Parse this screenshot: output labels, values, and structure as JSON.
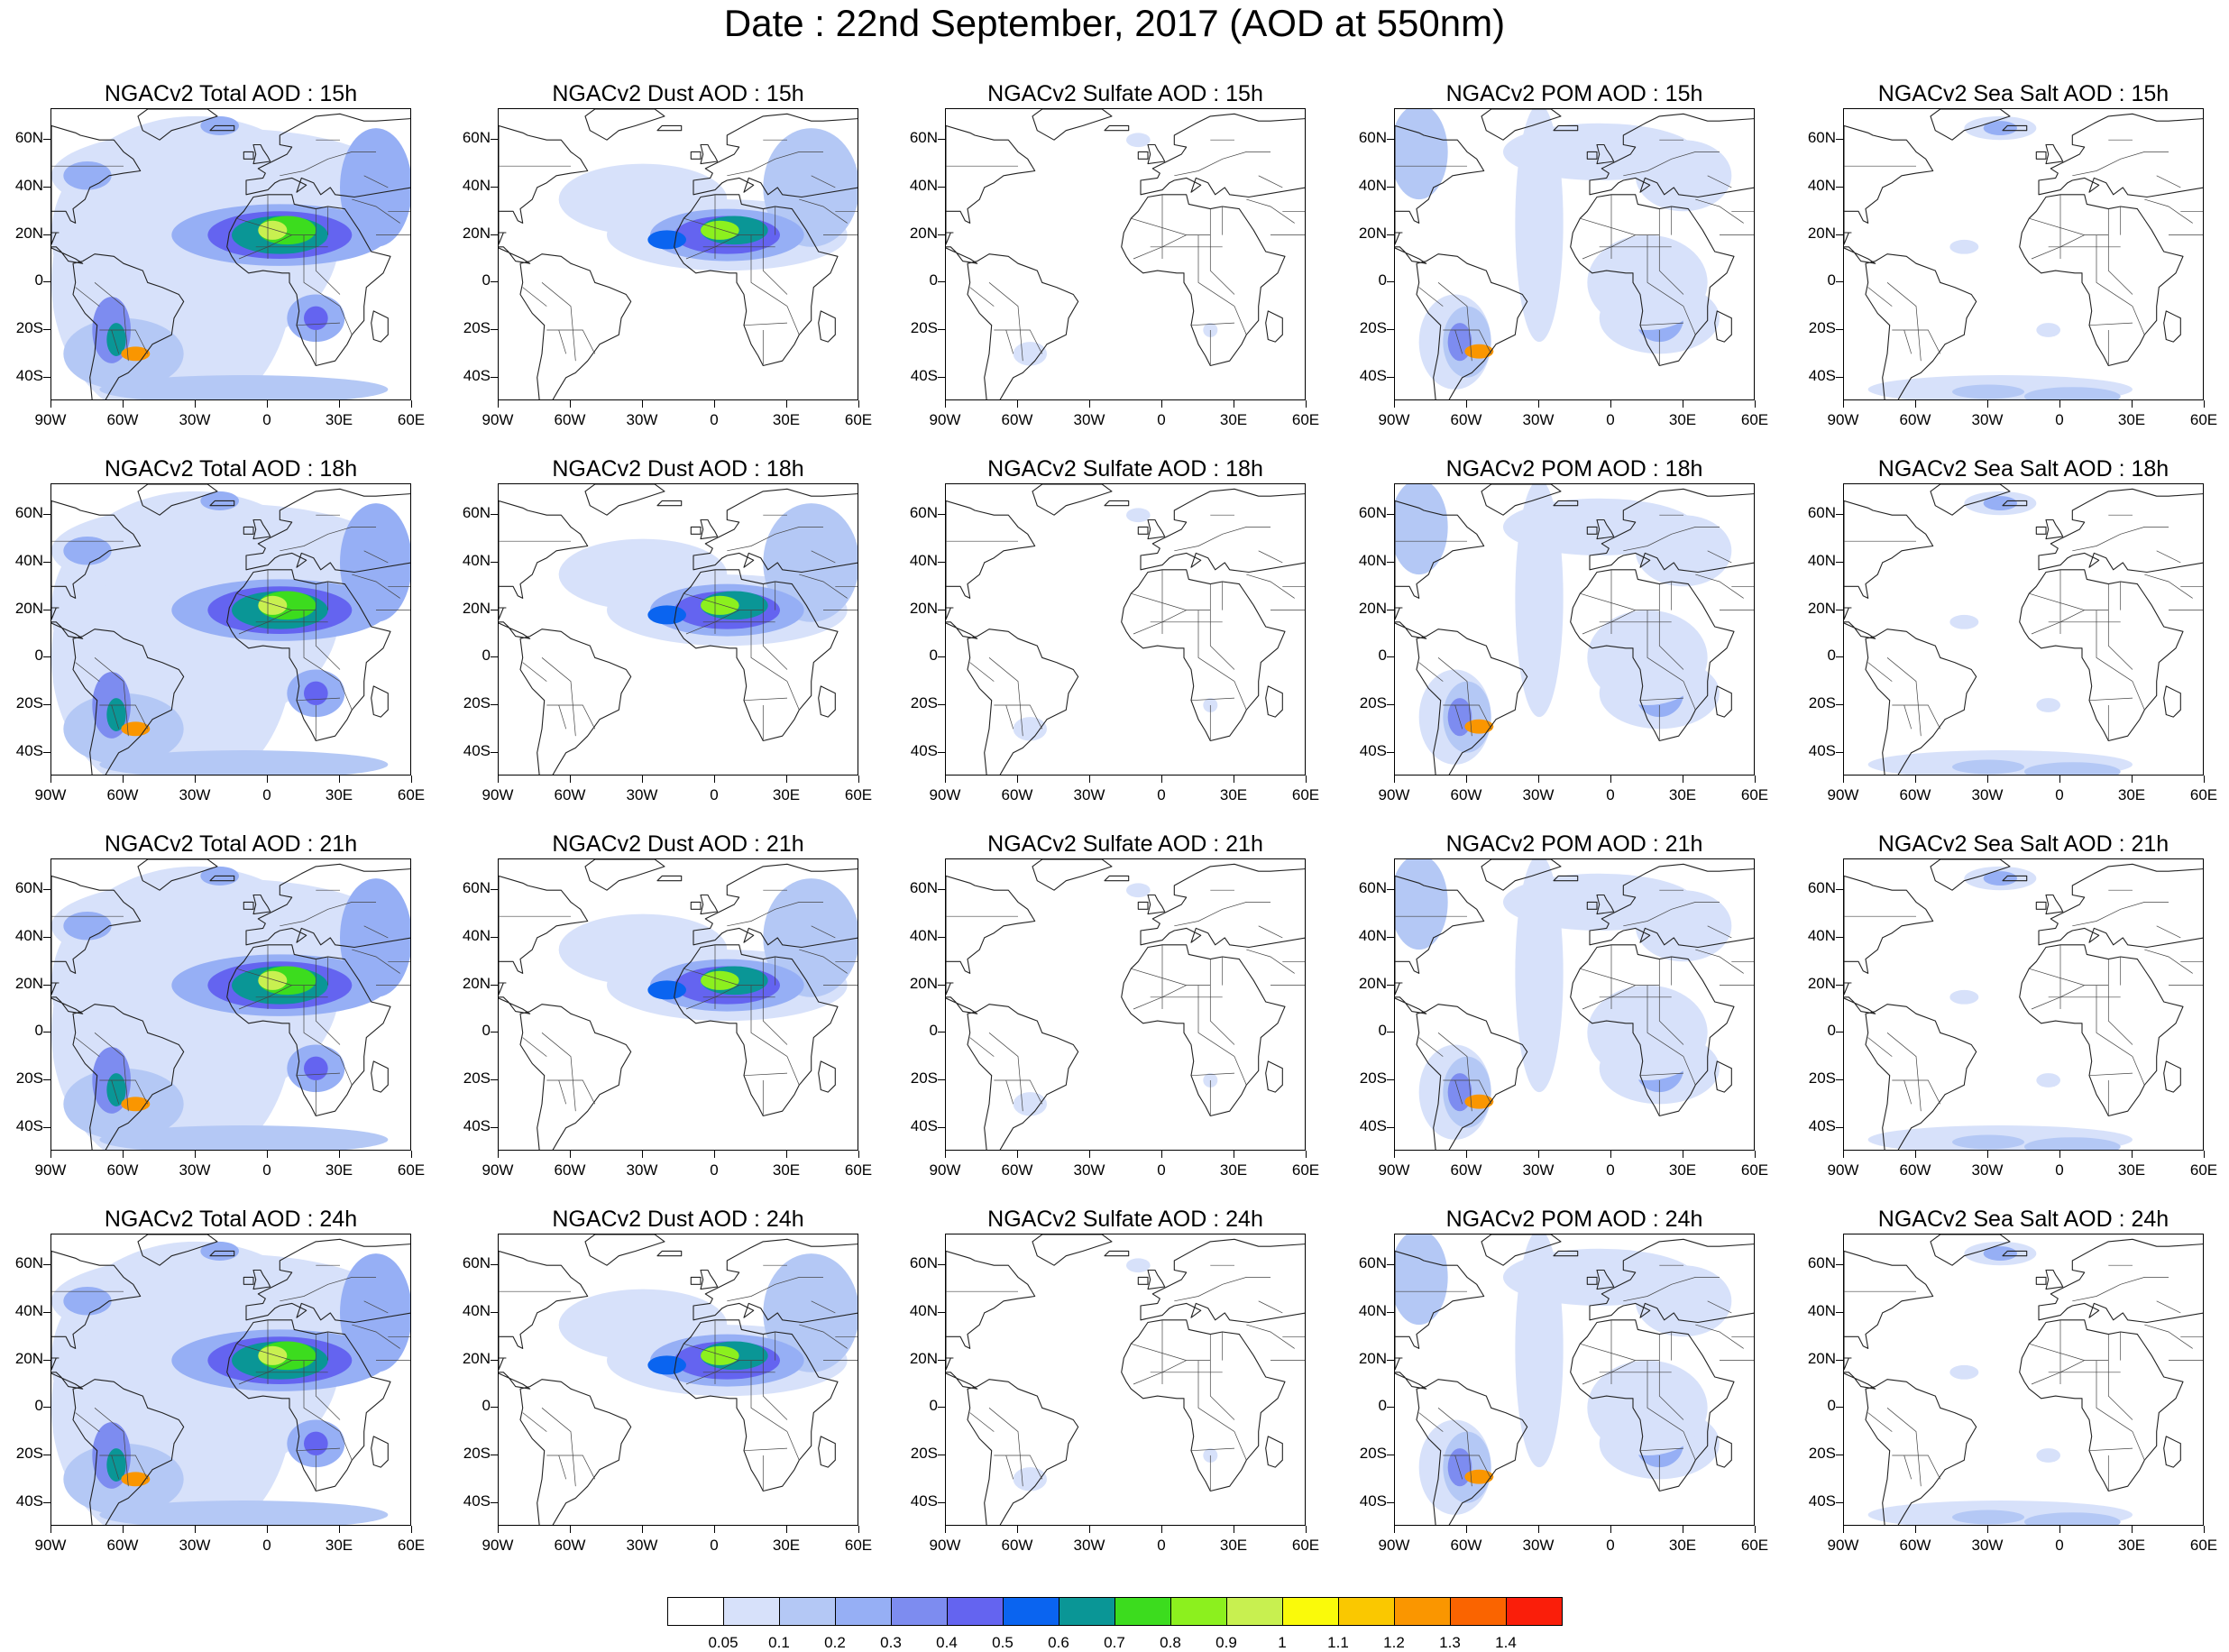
{
  "title": "Date : 22nd September, 2017 (AOD at 550nm)",
  "panels": [
    {
      "title": "NGACv2 Total AOD : 15h",
      "type": "total"
    },
    {
      "title": "NGACv2 Dust AOD : 15h",
      "type": "dust"
    },
    {
      "title": "NGACv2 Sulfate AOD : 15h",
      "type": "sulfate"
    },
    {
      "title": "NGACv2 POM AOD : 15h",
      "type": "pom"
    },
    {
      "title": "NGACv2 Sea Salt AOD : 15h",
      "type": "seasalt"
    },
    {
      "title": "NGACv2 Total AOD : 18h",
      "type": "total"
    },
    {
      "title": "NGACv2 Dust AOD : 18h",
      "type": "dust"
    },
    {
      "title": "NGACv2 Sulfate AOD : 18h",
      "type": "sulfate"
    },
    {
      "title": "NGACv2 POM AOD : 18h",
      "type": "pom"
    },
    {
      "title": "NGACv2 Sea Salt AOD : 18h",
      "type": "seasalt"
    },
    {
      "title": "NGACv2 Total AOD : 21h",
      "type": "total"
    },
    {
      "title": "NGACv2 Dust AOD : 21h",
      "type": "dust"
    },
    {
      "title": "NGACv2 Sulfate AOD : 21h",
      "type": "sulfate"
    },
    {
      "title": "NGACv2 POM AOD : 21h",
      "type": "pom"
    },
    {
      "title": "NGACv2 Sea Salt AOD : 21h",
      "type": "seasalt"
    },
    {
      "title": "NGACv2 Total AOD : 24h",
      "type": "total"
    },
    {
      "title": "NGACv2 Dust AOD : 24h",
      "type": "dust"
    },
    {
      "title": "NGACv2 Sulfate AOD : 24h",
      "type": "sulfate"
    },
    {
      "title": "NGACv2 POM AOD : 24h",
      "type": "pom"
    },
    {
      "title": "NGACv2 Sea Salt  AOD : 24h",
      "type": "seasalt"
    }
  ],
  "lat_labels": [
    "60N",
    "40N",
    "20N",
    "0",
    "20S",
    "40S"
  ],
  "lon_labels": [
    "90W",
    "60W",
    "30W",
    "0",
    "30E",
    "60E"
  ],
  "colorbar": {
    "colors": [
      "#ffffff",
      "#d7e1fa",
      "#b4c8f5",
      "#96aff5",
      "#7d8cf0",
      "#6464f0",
      "#0a64f0",
      "#0a9696",
      "#3cdc1e",
      "#8cf01e",
      "#c8f050",
      "#fafa0a",
      "#fac800",
      "#fa9600",
      "#fa6400",
      "#fa1e0a"
    ],
    "labels": [
      "0.05",
      "0.1",
      "0.2",
      "0.3",
      "0.4",
      "0.5",
      "0.6",
      "0.7",
      "0.8",
      "0.9",
      "1",
      "1.1",
      "1.2",
      "1.3",
      "1.4"
    ]
  }
}
